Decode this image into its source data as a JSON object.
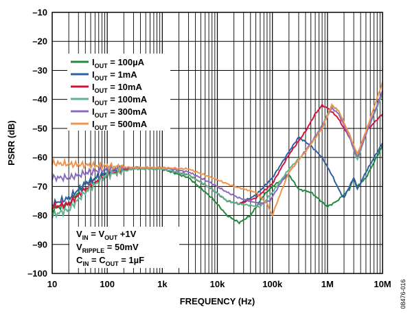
{
  "chart_data": {
    "type": "line",
    "xlabel": "FREQUENCY (Hz)",
    "ylabel": "PSRR (dB)",
    "x_scale": "log",
    "xlim": [
      10,
      10000000
    ],
    "ylim": [
      -100,
      -10
    ],
    "grid": true,
    "legend_position": "upper-left",
    "x_ticks": [
      {
        "value": 10,
        "label": "10"
      },
      {
        "value": 100,
        "label": "100"
      },
      {
        "value": 1000,
        "label": "1k"
      },
      {
        "value": 10000,
        "label": "10k"
      },
      {
        "value": 100000,
        "label": "100k"
      },
      {
        "value": 1000000,
        "label": "1M"
      },
      {
        "value": 10000000,
        "label": "10M"
      }
    ],
    "y_ticks": [
      {
        "value": -10,
        "label": "–10"
      },
      {
        "value": -20,
        "label": "–20"
      },
      {
        "value": -30,
        "label": "–30"
      },
      {
        "value": -40,
        "label": "–40"
      },
      {
        "value": -50,
        "label": "–50"
      },
      {
        "value": -60,
        "label": "–60"
      },
      {
        "value": -70,
        "label": "–70"
      },
      {
        "value": -80,
        "label": "–80"
      },
      {
        "value": -90,
        "label": "–90"
      },
      {
        "value": -100,
        "label": "–100"
      }
    ],
    "series": [
      {
        "label_main": "I",
        "label_sub": "OUT",
        "label_rest": " = 100µA",
        "color": "#1e8a3c",
        "points": [
          [
            10,
            -78
          ],
          [
            20,
            -76
          ],
          [
            40,
            -69
          ],
          [
            100,
            -65
          ],
          [
            300,
            -63.5
          ],
          [
            1000,
            -64
          ],
          [
            3000,
            -67
          ],
          [
            8000,
            -74
          ],
          [
            15000,
            -80
          ],
          [
            25000,
            -82.5
          ],
          [
            40000,
            -80
          ],
          [
            70000,
            -73
          ],
          [
            100000,
            -70
          ],
          [
            200000,
            -66
          ],
          [
            300000,
            -71
          ],
          [
            500000,
            -72
          ],
          [
            1000000,
            -77
          ],
          [
            1500000,
            -75
          ],
          [
            2500000,
            -71
          ],
          [
            3000000,
            -67
          ],
          [
            3500000,
            -70
          ],
          [
            5000000,
            -67
          ],
          [
            10000000,
            -56
          ]
        ]
      },
      {
        "label_main": "I",
        "label_sub": "OUT",
        "label_rest": " = 1mA",
        "color": "#2e5fa3",
        "points": [
          [
            10,
            -76
          ],
          [
            20,
            -74
          ],
          [
            40,
            -69
          ],
          [
            100,
            -65
          ],
          [
            300,
            -63.5
          ],
          [
            1000,
            -64
          ],
          [
            3000,
            -66
          ],
          [
            8000,
            -71
          ],
          [
            15000,
            -75
          ],
          [
            25000,
            -76
          ],
          [
            50000,
            -73
          ],
          [
            100000,
            -67
          ],
          [
            200000,
            -58
          ],
          [
            300000,
            -53
          ],
          [
            500000,
            -56
          ],
          [
            800000,
            -60
          ],
          [
            1200000,
            -66
          ],
          [
            1700000,
            -72
          ],
          [
            2000000,
            -74
          ],
          [
            2500000,
            -70
          ],
          [
            3000000,
            -67
          ],
          [
            3500000,
            -71
          ],
          [
            5000000,
            -65
          ],
          [
            10000000,
            -55
          ]
        ]
      },
      {
        "label_main": "I",
        "label_sub": "OUT",
        "label_rest": " = 10mA",
        "color": "#d2143c",
        "points": [
          [
            10,
            -77
          ],
          [
            20,
            -76
          ],
          [
            40,
            -71
          ],
          [
            100,
            -66
          ],
          [
            300,
            -63.5
          ],
          [
            1000,
            -64
          ],
          [
            3000,
            -66
          ],
          [
            8000,
            -71
          ],
          [
            15000,
            -75
          ],
          [
            25000,
            -76
          ],
          [
            50000,
            -74
          ],
          [
            100000,
            -69
          ],
          [
            200000,
            -59
          ],
          [
            400000,
            -51
          ],
          [
            600000,
            -45
          ],
          [
            800000,
            -42
          ],
          [
            1000000,
            -43
          ],
          [
            1500000,
            -46
          ],
          [
            2500000,
            -53
          ],
          [
            3500000,
            -59
          ],
          [
            5000000,
            -51
          ],
          [
            10000000,
            -45
          ]
        ]
      },
      {
        "label_main": "I",
        "label_sub": "OUT",
        "label_rest": " = 100mA",
        "color": "#5cb58c",
        "points": [
          [
            10,
            -80
          ],
          [
            20,
            -78
          ],
          [
            40,
            -72
          ],
          [
            100,
            -66
          ],
          [
            300,
            -64
          ],
          [
            1000,
            -64
          ],
          [
            3000,
            -66
          ],
          [
            8000,
            -71
          ],
          [
            15000,
            -75
          ],
          [
            25000,
            -76
          ],
          [
            60000,
            -77
          ],
          [
            100000,
            -72
          ],
          [
            200000,
            -64
          ],
          [
            400000,
            -58
          ],
          [
            800000,
            -49
          ],
          [
            1200000,
            -42
          ],
          [
            1600000,
            -44
          ],
          [
            2500000,
            -53
          ],
          [
            3500000,
            -61
          ],
          [
            5000000,
            -52
          ],
          [
            10000000,
            -38
          ]
        ]
      },
      {
        "label_main": "I",
        "label_sub": "OUT",
        "label_rest": " = 300mA",
        "color": "#8b6bbf",
        "points": [
          [
            10,
            -67
          ],
          [
            20,
            -67
          ],
          [
            50,
            -65
          ],
          [
            100,
            -64
          ],
          [
            300,
            -63.5
          ],
          [
            1000,
            -63.5
          ],
          [
            3000,
            -65
          ],
          [
            8000,
            -69
          ],
          [
            15000,
            -72
          ],
          [
            25000,
            -74
          ],
          [
            60000,
            -76
          ],
          [
            90000,
            -75
          ],
          [
            150000,
            -68
          ],
          [
            300000,
            -61
          ],
          [
            700000,
            -51
          ],
          [
            1200000,
            -43
          ],
          [
            1600000,
            -45
          ],
          [
            2500000,
            -53
          ],
          [
            3500000,
            -60
          ],
          [
            5000000,
            -52
          ],
          [
            10000000,
            -37
          ]
        ]
      },
      {
        "label_main": "I",
        "label_sub": "OUT",
        "label_rest": " = 500mA",
        "color": "#f0944c",
        "points": [
          [
            10,
            -62
          ],
          [
            30,
            -62.5
          ],
          [
            100,
            -63
          ],
          [
            300,
            -63.5
          ],
          [
            1000,
            -63.5
          ],
          [
            3000,
            -64
          ],
          [
            8000,
            -67
          ],
          [
            20000,
            -70
          ],
          [
            50000,
            -72
          ],
          [
            80000,
            -76
          ],
          [
            100000,
            -80
          ],
          [
            130000,
            -74
          ],
          [
            200000,
            -65
          ],
          [
            400000,
            -58
          ],
          [
            800000,
            -50
          ],
          [
            1200000,
            -42
          ],
          [
            1600000,
            -44
          ],
          [
            2500000,
            -52
          ],
          [
            3500000,
            -59
          ],
          [
            5000000,
            -51
          ],
          [
            10000000,
            -34
          ]
        ]
      }
    ],
    "annotations": [
      {
        "main": "V",
        "sub1": "IN",
        "mid": " = V",
        "sub2": "OUT",
        "rest": " +1V"
      },
      {
        "main": "V",
        "sub1": "RIPPLE",
        "mid": " = 50mV",
        "sub2": "",
        "rest": ""
      },
      {
        "main": "C",
        "sub1": "IN",
        "mid": " = C",
        "sub2": "OUT",
        "rest": " = 1µF"
      }
    ],
    "figure_id": "08476-016"
  }
}
